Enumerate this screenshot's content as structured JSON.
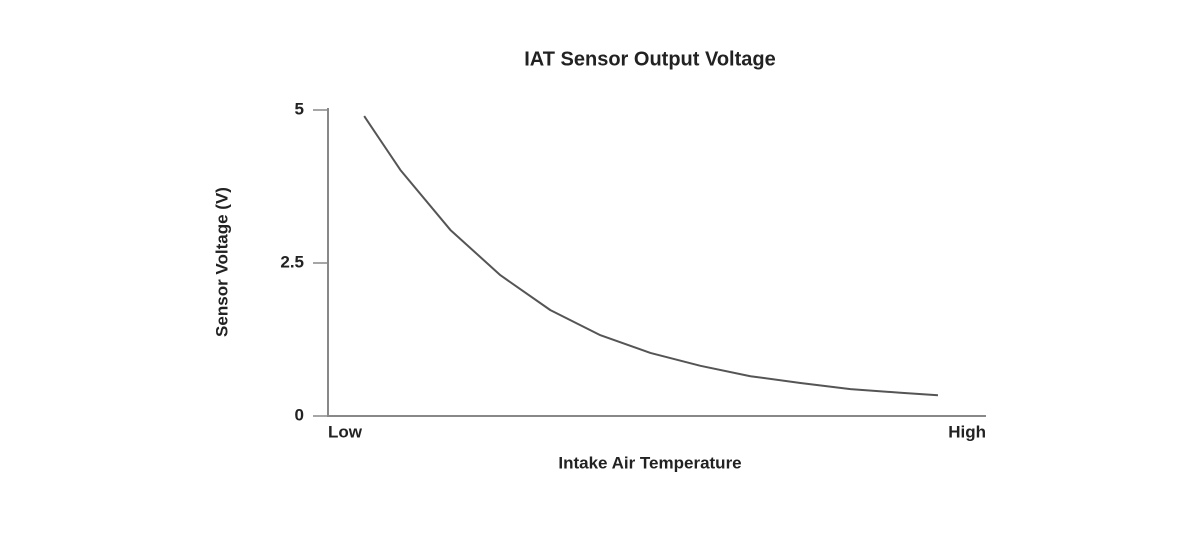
{
  "chart_data": {
    "type": "line",
    "title": "IAT Sensor Output Voltage",
    "x_label": "Intake Air Temperature",
    "y_label": "Sensor Voltage (V)",
    "x": [
      0.55,
      1.1,
      1.86,
      2.62,
      3.38,
      4.14,
      4.9,
      5.66,
      6.42,
      7.18,
      7.94,
      8.7,
      9.27
    ],
    "values": [
      4.9,
      4.02,
      3.04,
      2.3,
      1.73,
      1.32,
      1.03,
      0.82,
      0.65,
      0.54,
      0.44,
      0.38,
      0.34
    ],
    "color": "#555555",
    "xlim": [
      0,
      10
    ],
    "xticks": [
      {
        "value": 0,
        "label": "Low"
      },
      {
        "value": 10,
        "label": "High"
      }
    ],
    "ylim": [
      0,
      5
    ],
    "yticks": [
      0,
      2.5,
      5
    ],
    "grid": false
  }
}
